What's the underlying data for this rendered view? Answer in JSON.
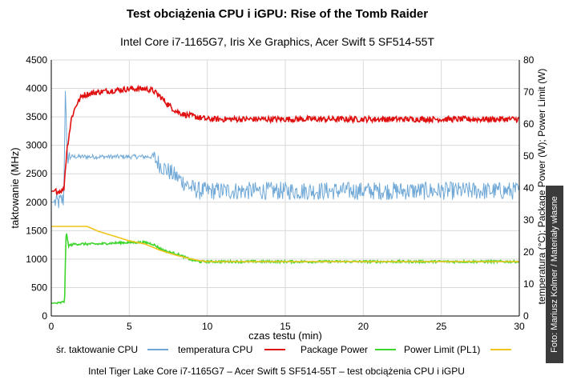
{
  "chart_data": {
    "type": "line",
    "title": "Test obciążenia CPU i iGPU: Rise of the Tomb Raider",
    "subtitle": "Intel Core i7-1165G7, Iris Xe Graphics, Acer Swift 5 SF514-55T",
    "xlabel": "czas testu (min)",
    "ylabel_left": "taktowanie (MHz)",
    "ylabel_right": "temperatura (°C); Package Power (W); Power Limit (W)",
    "xlim": [
      0,
      30
    ],
    "ylim_left": [
      0,
      4500
    ],
    "ylim_right": [
      0,
      80
    ],
    "x_ticks": [
      "0",
      "5",
      "10",
      "15",
      "20",
      "25",
      "30"
    ],
    "y_ticks_left": [
      "0",
      "500",
      "1000",
      "1500",
      "2000",
      "2500",
      "3000",
      "3500",
      "4000",
      "4500"
    ],
    "y_ticks_right": [
      "0",
      "10",
      "20",
      "30",
      "40",
      "50",
      "60",
      "70",
      "80"
    ],
    "grid": true,
    "legend_position": "bottom",
    "series": [
      {
        "name": "śr. taktowanie CPU",
        "axis": "left",
        "color": "#6fa8d6",
        "x": [
          0,
          0.5,
          0.8,
          0.9,
          1.0,
          1.2,
          1.5,
          2,
          3,
          4,
          5,
          6,
          6.5,
          7,
          7.5,
          8,
          8.5,
          9,
          9.5,
          10,
          12,
          15,
          18,
          20,
          22,
          25,
          28,
          30
        ],
        "values": [
          2000,
          2000,
          2050,
          4050,
          2800,
          2800,
          2800,
          2800,
          2800,
          2800,
          2800,
          2800,
          2800,
          2650,
          2550,
          2450,
          2350,
          2250,
          2200,
          2200,
          2200,
          2200,
          2200,
          2200,
          2200,
          2200,
          2200,
          2200
        ]
      },
      {
        "name": "temperatura CPU",
        "axis": "right",
        "color": "#e01010",
        "x": [
          0,
          0.5,
          0.8,
          1.0,
          1.3,
          1.6,
          2,
          3,
          4,
          5,
          6,
          6.5,
          7,
          7.5,
          8,
          8.5,
          9,
          9.5,
          10,
          12,
          15,
          18,
          20,
          22,
          25,
          28,
          30
        ],
        "values": [
          39,
          39,
          39.5,
          52,
          62,
          66,
          69,
          70,
          70.5,
          71,
          71,
          70.5,
          68.5,
          66,
          64,
          63,
          62.5,
          62,
          61.5,
          61.5,
          61.5,
          61.5,
          61.5,
          61.5,
          61.5,
          61.5,
          61.5
        ]
      },
      {
        "name": "Package Power",
        "axis": "right",
        "color": "#3dd62c",
        "x": [
          0,
          0.5,
          0.85,
          0.95,
          1.1,
          1.5,
          2,
          3,
          4,
          5,
          6,
          6.5,
          7,
          7.5,
          8,
          8.5,
          9,
          9.5,
          10,
          12,
          15,
          18,
          20,
          22,
          25,
          28,
          30
        ],
        "values": [
          4,
          4,
          4.5,
          26.5,
          22,
          22.5,
          22.5,
          22.5,
          22.8,
          23,
          23,
          22.5,
          21,
          20,
          19.5,
          18.5,
          17.5,
          17,
          17,
          17,
          17,
          17,
          17,
          17,
          17,
          17,
          17
        ]
      },
      {
        "name": "Power Limit (PL1)",
        "axis": "right",
        "color": "#f0c419",
        "x": [
          0,
          1,
          2.3,
          3,
          4,
          5,
          6,
          6.5,
          7,
          8,
          9,
          9.5,
          10,
          15,
          20,
          25,
          30
        ],
        "values": [
          28,
          28,
          28,
          26.5,
          25,
          23.5,
          22.5,
          21.5,
          20.5,
          19,
          17.8,
          17.3,
          17,
          17,
          17,
          17,
          17
        ]
      }
    ]
  },
  "footer": {
    "caption": "Intel Tiger Lake Core i7-1165G7 – Acer Swift 5 SF514-55T – test obciążenia CPU i iGPU",
    "credit": "Foto: Mariusz Kolmer / Materiały własne"
  }
}
